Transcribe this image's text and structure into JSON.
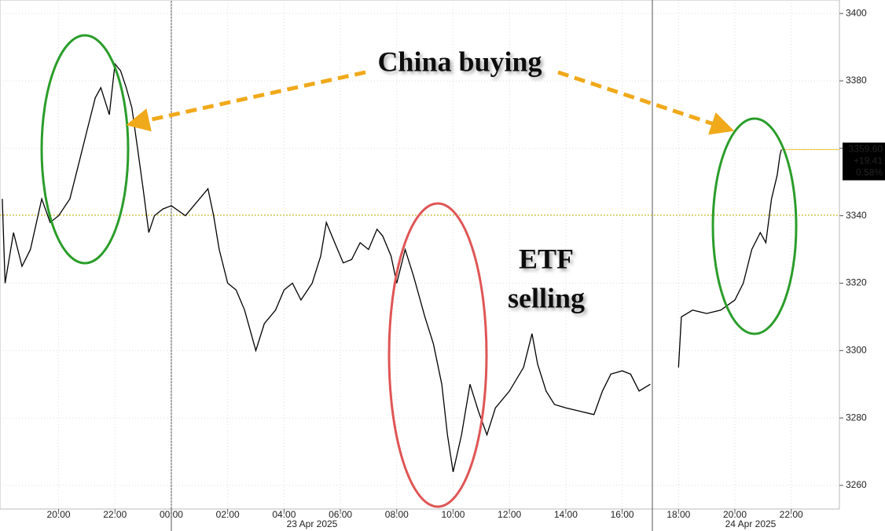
{
  "chart_data": {
    "type": "line",
    "x": [
      -6,
      -5.9,
      -5.6,
      -5.3,
      -5,
      -4.6,
      -4.3,
      -4,
      -3.6,
      -3.3,
      -3,
      -2.7,
      -2.5,
      -2.2,
      -2,
      -1.8,
      -1.6,
      -1.4,
      -1.2,
      -1,
      -0.8,
      -0.6,
      -0.3,
      0,
      0.5,
      1,
      1.3,
      1.5,
      1.7,
      2,
      2.3,
      2.6,
      3,
      3.3,
      3.7,
      4,
      4.3,
      4.6,
      5,
      5.3,
      5.5,
      5.8,
      6.1,
      6.4,
      6.7,
      7,
      7.3,
      7.5,
      7.8,
      8,
      8.3,
      8.6,
      9,
      9.3,
      9.6,
      9.8,
      10,
      10.3,
      10.6,
      10.9,
      11.2,
      11.5,
      12,
      12.5,
      12.8,
      13,
      13.3,
      13.6,
      14,
      14.5,
      15,
      15.3,
      15.6,
      16,
      16.3,
      16.6,
      17,
      17.5,
      18,
      18.1,
      18.5,
      19,
      19.5,
      20,
      20.3,
      20.6,
      20.9,
      21.1,
      21.3,
      21.5,
      21.6,
      21.65
    ],
    "values": [
      3345,
      3320,
      3335,
      3325,
      3330,
      3345,
      3338,
      3340,
      3345,
      3355,
      3365,
      3375,
      3378,
      3370,
      3385,
      3383,
      3378,
      3372,
      3360,
      3348,
      3335,
      3340,
      3342,
      3343,
      3340,
      3345,
      3348,
      3340,
      3330,
      3320,
      3318,
      3312,
      3300,
      3308,
      3312,
      3318,
      3320,
      3315,
      3320,
      3328,
      3338,
      3332,
      3326,
      3327,
      3332,
      3330,
      3336,
      3334,
      3328,
      3320,
      3330,
      3322,
      3310,
      3302,
      3290,
      3275,
      3264,
      3275,
      3290,
      3282,
      3275,
      3283,
      3288,
      3295,
      3305,
      3296,
      3288,
      3284,
      3283,
      3282,
      3281,
      3288,
      3293,
      3294,
      3293,
      3288,
      3290,
      null,
      3295,
      3310,
      3312,
      3311,
      3312,
      3315,
      3320,
      3330,
      3335,
      3332,
      3345,
      3352,
      3358,
      3359.6
    ],
    "color": "#000000",
    "xlim": [
      -6.08,
      23.71
    ],
    "xticks": [
      {
        "value": -4,
        "label": "20:00"
      },
      {
        "value": -2,
        "label": "22:00"
      },
      {
        "value": 0,
        "label": "00:00"
      },
      {
        "value": 2,
        "label": "02:00"
      },
      {
        "value": 4,
        "label": "04:00"
      },
      {
        "value": 6,
        "label": "06:00"
      },
      {
        "value": 8,
        "label": "08:00"
      },
      {
        "value": 10,
        "label": "10:00"
      },
      {
        "value": 12,
        "label": "12:00"
      },
      {
        "value": 14,
        "label": "14:00"
      },
      {
        "value": 16,
        "label": "16:00"
      },
      {
        "value": 18,
        "label": "18:00"
      },
      {
        "value": 20,
        "label": "20:00"
      },
      {
        "value": 22,
        "label": "22:00"
      }
    ],
    "date_labels": [
      "23 Apr 2025",
      "24 Apr 2025"
    ],
    "ylim": [
      3253,
      3404
    ],
    "yticks": [
      3260,
      3280,
      3300,
      3320,
      3340,
      3360,
      3380,
      3400
    ],
    "reference_line": 3340.19,
    "last": {
      "value": 3359.6,
      "label": "3359.60"
    },
    "change": {
      "value": 19.41,
      "label": "+19.41"
    },
    "change_pct": {
      "value": 0.58,
      "label": "0.58%"
    },
    "annotations": [
      "China buying",
      "ETF",
      "selling"
    ]
  }
}
